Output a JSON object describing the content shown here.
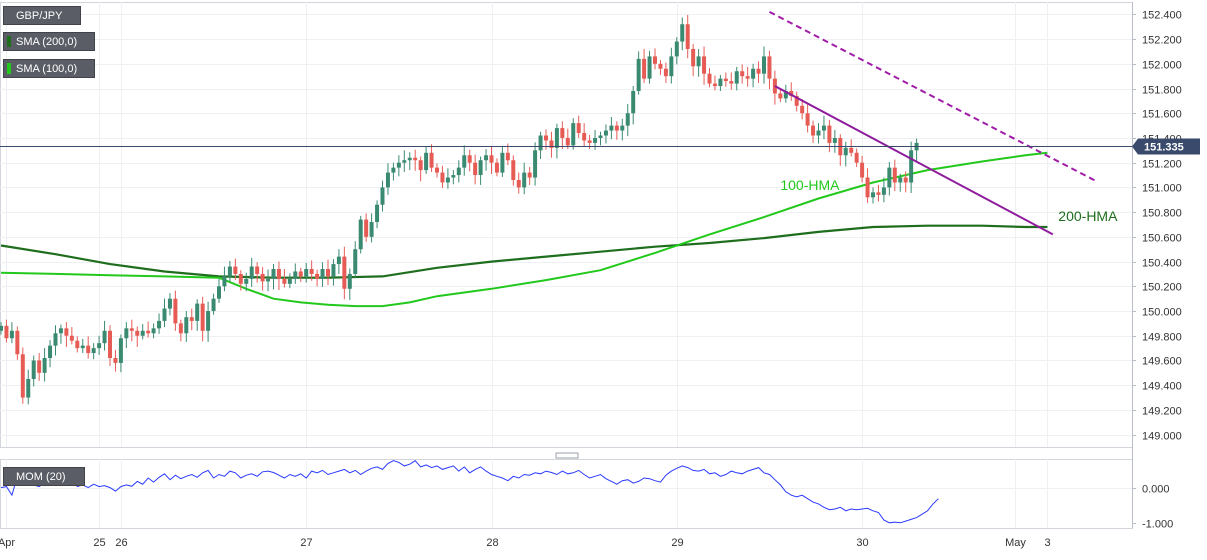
{
  "header": {
    "symbol": "GBP/JPY",
    "indicators": [
      {
        "label": "SMA (200,0)",
        "color": "#1e6e1e"
      },
      {
        "label": "SMA (100,0)",
        "color": "#22c81c"
      }
    ],
    "mom_label": "MOM (20)"
  },
  "chart_data": {
    "type": "candlestick",
    "price_axis": {
      "ylim": [
        148.9,
        152.5
      ],
      "ticks": [
        "152.400",
        "152.200",
        "152.000",
        "151.800",
        "151.600",
        "151.400",
        "151.200",
        "151.000",
        "150.800",
        "150.600",
        "150.400",
        "150.200",
        "150.000",
        "149.800",
        "149.600",
        "149.400",
        "149.200",
        "149.000"
      ]
    },
    "current_price": {
      "value": 151.335,
      "label": "151.335"
    },
    "x_axis": {
      "labels": [
        {
          "text": "Apr",
          "bar": 1
        },
        {
          "text": "25",
          "bar": 18
        },
        {
          "text": "26",
          "bar": 22
        },
        {
          "text": "27",
          "bar": 56
        },
        {
          "text": "28",
          "bar": 90
        },
        {
          "text": "29",
          "bar": 124
        },
        {
          "text": "30",
          "bar": 158
        },
        {
          "text": "May",
          "bar": 186
        },
        {
          "text": "3",
          "bar": 192
        }
      ]
    },
    "closes": [
      149.88,
      149.78,
      149.84,
      149.65,
      149.3,
      149.45,
      149.6,
      149.5,
      149.62,
      149.72,
      149.82,
      149.86,
      149.8,
      149.76,
      149.7,
      149.72,
      149.66,
      149.7,
      149.74,
      149.84,
      149.62,
      149.58,
      149.78,
      149.86,
      149.84,
      149.8,
      149.84,
      149.82,
      149.86,
      149.92,
      150.02,
      150.1,
      149.9,
      149.82,
      149.95,
      149.92,
      150.06,
      149.84,
      150.0,
      150.1,
      150.2,
      150.28,
      150.36,
      150.3,
      150.22,
      150.26,
      150.36,
      150.3,
      150.24,
      150.26,
      150.34,
      150.26,
      150.22,
      150.26,
      150.32,
      150.28,
      150.34,
      150.3,
      150.26,
      150.34,
      150.28,
      150.38,
      150.44,
      150.18,
      150.3,
      150.5,
      150.74,
      150.6,
      150.72,
      150.86,
      151.0,
      151.12,
      151.16,
      151.2,
      151.22,
      151.24,
      151.22,
      151.14,
      151.28,
      151.16,
      151.12,
      151.04,
      151.08,
      151.1,
      151.16,
      151.26,
      151.2,
      151.1,
      151.22,
      151.26,
      151.2,
      151.12,
      151.28,
      151.22,
      151.06,
      151.0,
      151.12,
      151.08,
      151.3,
      151.42,
      151.38,
      151.32,
      151.48,
      151.4,
      151.34,
      151.52,
      151.44,
      151.38,
      151.36,
      151.4,
      151.42,
      151.46,
      151.5,
      151.46,
      151.5,
      151.6,
      151.78,
      152.04,
      151.88,
      152.06,
      152.0,
      151.96,
      151.9,
      152.06,
      152.18,
      152.32,
      152.12,
      151.98,
      152.06,
      151.92,
      151.84,
      151.82,
      151.88,
      151.86,
      151.84,
      151.94,
      151.9,
      151.88,
      151.96,
      151.92,
      152.06,
      151.88,
      151.76,
      151.72,
      151.78,
      151.74,
      151.66,
      151.6,
      151.5,
      151.42,
      151.46,
      151.5,
      151.36,
      151.4,
      151.26,
      151.32,
      151.28,
      151.2,
      151.08,
      150.92,
      150.96,
      150.94,
      151.0,
      151.16,
      151.04,
      151.08,
      151.04,
      151.3,
      151.36
    ],
    "mom": {
      "ylim": [
        -1.15,
        0.85
      ],
      "ticks": [
        "0.000",
        "-1.000"
      ],
      "values": [
        0.02,
        0.05,
        -0.2,
        0.35,
        0.15,
        0.2,
        0.1,
        0.05,
        0.15,
        0.3,
        0.22,
        0.35,
        0.18,
        0.25,
        0.05,
        0.1,
        0.02,
        0.12,
        0.05,
        0.08,
        0.02,
        -0.08,
        0.05,
        0.1,
        0.06,
        0.2,
        0.12,
        0.3,
        0.18,
        0.32,
        0.42,
        0.25,
        0.38,
        0.28,
        0.35,
        0.4,
        0.32,
        0.45,
        0.52,
        0.3,
        0.4,
        0.35,
        0.5,
        0.45,
        0.3,
        0.38,
        0.42,
        0.35,
        0.48,
        0.5,
        0.46,
        0.38,
        0.3,
        0.4,
        0.35,
        0.42,
        0.3,
        0.5,
        0.45,
        0.52,
        0.4,
        0.45,
        0.5,
        0.55,
        0.45,
        0.52,
        0.4,
        0.5,
        0.58,
        0.62,
        0.55,
        0.72,
        0.8,
        0.75,
        0.65,
        0.7,
        0.8,
        0.62,
        0.68,
        0.6,
        0.65,
        0.55,
        0.6,
        0.65,
        0.5,
        0.62,
        0.45,
        0.55,
        0.62,
        0.5,
        0.4,
        0.35,
        0.3,
        0.22,
        0.35,
        0.3,
        0.4,
        0.38,
        0.45,
        0.42,
        0.5,
        0.46,
        0.4,
        0.5,
        0.42,
        0.45,
        0.52,
        0.4,
        0.3,
        0.35,
        0.4,
        0.28,
        0.2,
        0.12,
        0.22,
        0.25,
        0.15,
        0.2,
        0.3,
        0.28,
        0.22,
        0.18,
        0.38,
        0.5,
        0.58,
        0.65,
        0.6,
        0.52,
        0.5,
        0.55,
        0.42,
        0.45,
        0.35,
        0.4,
        0.5,
        0.45,
        0.42,
        0.5,
        0.55,
        0.6,
        0.45,
        0.4,
        0.25,
        0.1,
        -0.1,
        -0.2,
        -0.25,
        -0.2,
        -0.3,
        -0.4,
        -0.45,
        -0.55,
        -0.62,
        -0.6,
        -0.55,
        -0.65,
        -0.6,
        -0.62,
        -0.6,
        -0.58,
        -0.65,
        -0.7,
        -0.92,
        -1.0,
        -0.98,
        -1.0,
        -0.95,
        -0.9,
        -0.85,
        -0.75,
        -0.65,
        -0.45,
        -0.3
      ]
    },
    "sma200": {
      "name": "200-HMA",
      "points": [
        [
          0,
          150.53
        ],
        [
          10,
          150.46
        ],
        [
          20,
          150.38
        ],
        [
          30,
          150.32
        ],
        [
          40,
          150.28
        ],
        [
          50,
          150.27
        ],
        [
          60,
          150.27
        ],
        [
          70,
          150.28
        ],
        [
          80,
          150.35
        ],
        [
          90,
          150.4
        ],
        [
          100,
          150.44
        ],
        [
          110,
          150.48
        ],
        [
          120,
          150.52
        ],
        [
          130,
          150.55
        ],
        [
          140,
          150.59
        ],
        [
          150,
          150.64
        ],
        [
          160,
          150.68
        ],
        [
          170,
          150.69
        ],
        [
          180,
          150.69
        ],
        [
          188,
          150.68
        ],
        [
          192,
          150.68
        ]
      ]
    },
    "sma100": {
      "name": "100-HMA",
      "points": [
        [
          0,
          150.31
        ],
        [
          10,
          150.3
        ],
        [
          20,
          150.29
        ],
        [
          30,
          150.28
        ],
        [
          40,
          150.27
        ],
        [
          45,
          150.18
        ],
        [
          50,
          150.1
        ],
        [
          55,
          150.07
        ],
        [
          60,
          150.05
        ],
        [
          65,
          150.04
        ],
        [
          70,
          150.04
        ],
        [
          75,
          150.07
        ],
        [
          80,
          150.12
        ],
        [
          90,
          150.18
        ],
        [
          100,
          150.25
        ],
        [
          110,
          150.33
        ],
        [
          120,
          150.47
        ],
        [
          130,
          150.62
        ],
        [
          140,
          150.76
        ],
        [
          150,
          150.91
        ],
        [
          160,
          151.04
        ],
        [
          170,
          151.14
        ],
        [
          180,
          151.21
        ],
        [
          188,
          151.26
        ],
        [
          192,
          151.28
        ]
      ]
    },
    "trendlines": [
      {
        "style": "dashed",
        "color": "#a01ca8",
        "from": [
          141,
          152.42
        ],
        "to": [
          201,
          151.05
        ]
      },
      {
        "style": "solid",
        "color": "#8e1c9c",
        "from": [
          142,
          151.82
        ],
        "to": [
          193,
          150.62
        ]
      }
    ],
    "annotations": [
      {
        "text": "100-HMA",
        "color": "#22c81c",
        "bar": 143,
        "price": 150.98
      },
      {
        "text": "200-HMA",
        "color": "#1e6e1e",
        "bar": 194,
        "price": 150.73
      }
    ],
    "colors": {
      "up": "#3a8a72",
      "down": "#e65c55",
      "mom_line": "#2a3aff",
      "price_badge": "#3a4a6c"
    }
  }
}
